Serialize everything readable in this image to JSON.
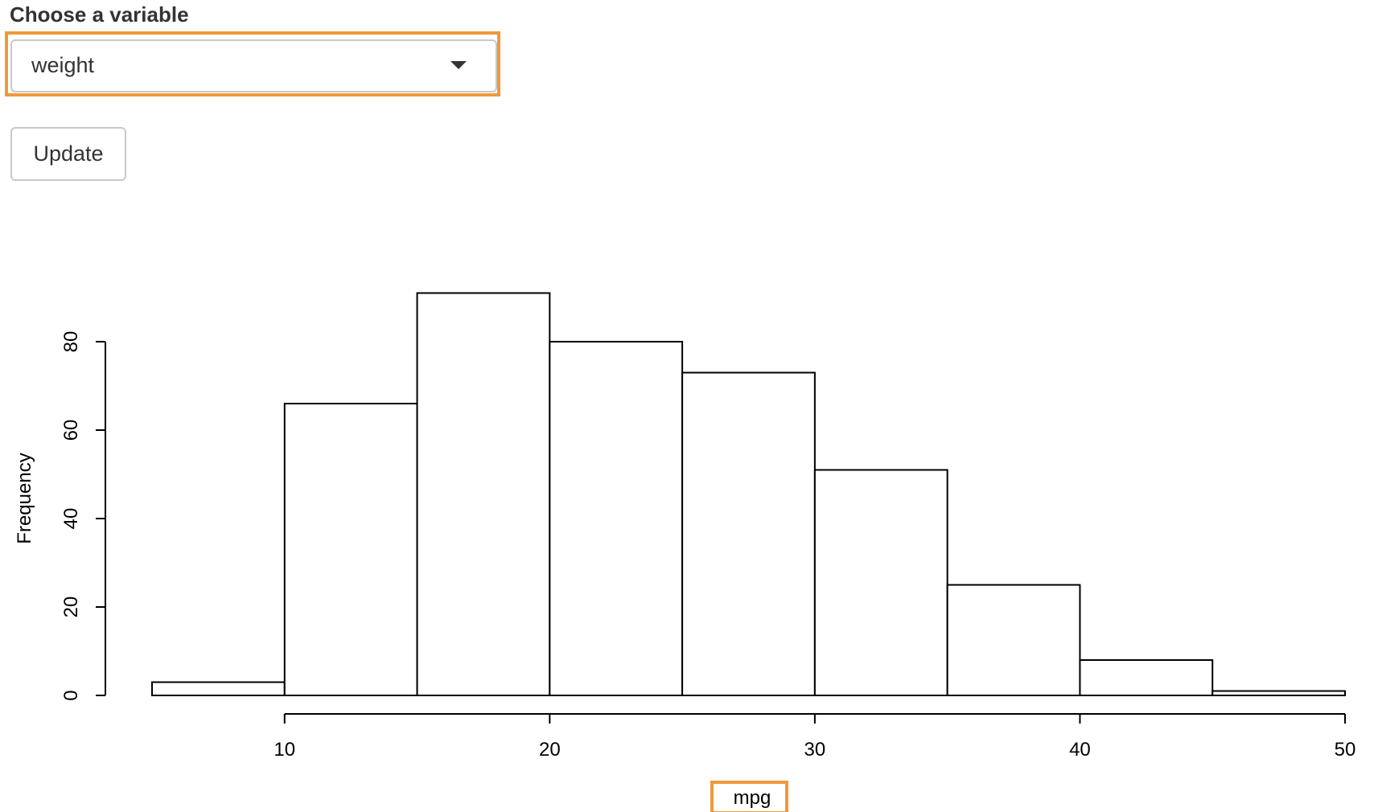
{
  "control": {
    "label": "Choose a variable",
    "selected_value": "weight",
    "update_label": "Update"
  },
  "colors": {
    "highlight": "#f0993b",
    "text": "#333333",
    "border": "#c8c8c8"
  },
  "chart_data": {
    "type": "bar",
    "histogram": true,
    "title": "",
    "xlabel": "mpg",
    "ylabel": "Frequency",
    "bins": [
      {
        "start": 5,
        "end": 10,
        "count": 3
      },
      {
        "start": 10,
        "end": 15,
        "count": 66
      },
      {
        "start": 15,
        "end": 20,
        "count": 91
      },
      {
        "start": 20,
        "end": 25,
        "count": 80
      },
      {
        "start": 25,
        "end": 30,
        "count": 73
      },
      {
        "start": 30,
        "end": 35,
        "count": 51
      },
      {
        "start": 35,
        "end": 40,
        "count": 25
      },
      {
        "start": 40,
        "end": 45,
        "count": 8
      },
      {
        "start": 45,
        "end": 50,
        "count": 1
      }
    ],
    "xticks": [
      10,
      20,
      30,
      40,
      50
    ],
    "yticks": [
      0,
      20,
      40,
      60,
      80
    ],
    "xlim": [
      5,
      50
    ],
    "ylim": [
      0,
      91
    ],
    "grid": false,
    "legend": "none"
  }
}
